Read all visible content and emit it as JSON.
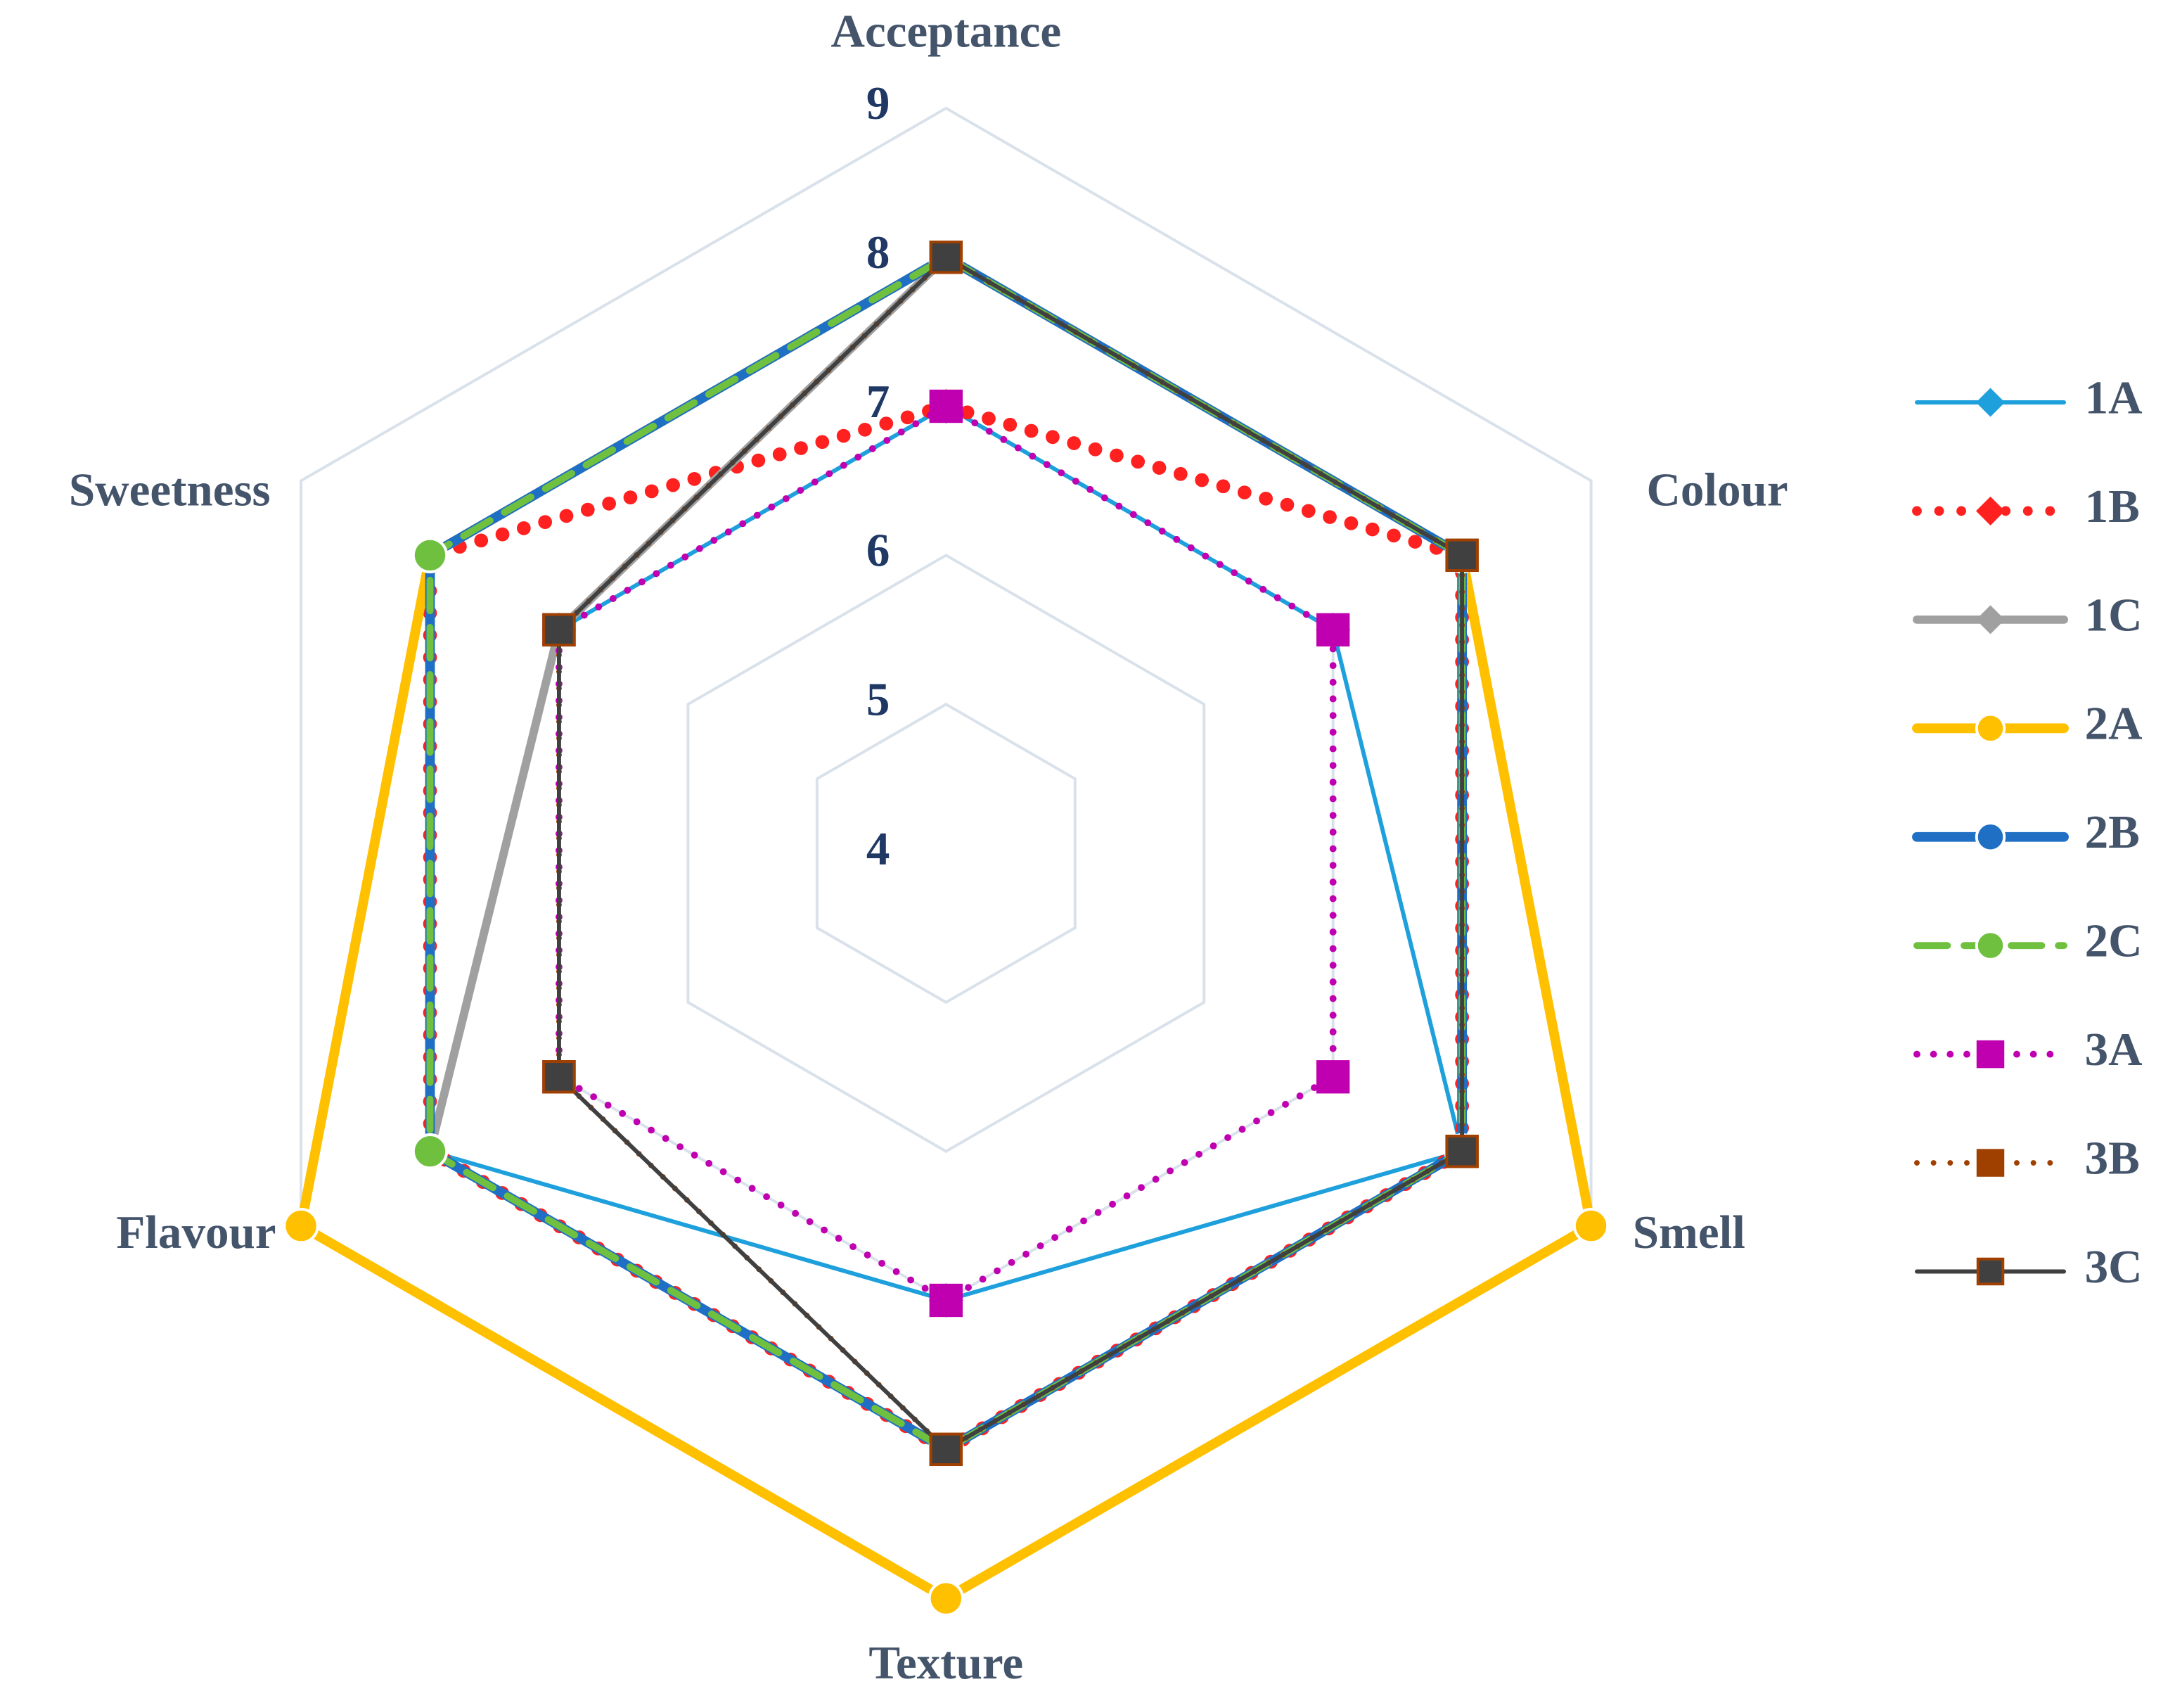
{
  "chart_data": {
    "type": "radar",
    "categories": [
      "Acceptance",
      "Colour",
      "Smell",
      "Texture",
      "Flavour",
      "Sweetness"
    ],
    "ylim": [
      4,
      9
    ],
    "yticks": [
      4,
      5,
      6,
      7,
      8,
      9
    ],
    "grid": true,
    "legend": "right",
    "series": [
      {
        "name": "1A",
        "color": "#1ea0dc",
        "marker": "diamond",
        "line": "solid",
        "values": [
          7,
          7,
          8,
          7,
          8,
          7
        ]
      },
      {
        "name": "1B",
        "color": "#ff2020",
        "marker": "diamond",
        "line": "dotted",
        "values": [
          7,
          8,
          8,
          8,
          8,
          8
        ]
      },
      {
        "name": "1C",
        "color": "#a0a0a0",
        "marker": "diamond",
        "line": "solid",
        "values": [
          8,
          8,
          8,
          8,
          8,
          7
        ]
      },
      {
        "name": "2A",
        "color": "#ffc000",
        "marker": "circle",
        "line": "solid",
        "values": [
          8,
          8,
          9,
          9,
          9,
          8
        ]
      },
      {
        "name": "2B",
        "color": "#1f6fc5",
        "marker": "circle",
        "line": "solid",
        "values": [
          8,
          8,
          8,
          8,
          8,
          8
        ]
      },
      {
        "name": "2C",
        "color": "#70c040",
        "marker": "circle",
        "line": "dashed",
        "values": [
          8,
          8,
          8,
          8,
          8,
          8
        ]
      },
      {
        "name": "3A",
        "color": "#c000b0",
        "marker": "square",
        "line": "dotted",
        "values": [
          7,
          7,
          7,
          7,
          7,
          7
        ]
      },
      {
        "name": "3B",
        "color": "#a04000",
        "marker": "square",
        "line": "dotted",
        "values": [
          8,
          8,
          8,
          8,
          7,
          7
        ]
      },
      {
        "name": "3C",
        "color": "#404040",
        "marker": "square",
        "line": "solid",
        "values": [
          8,
          8,
          8,
          8,
          7,
          7
        ]
      }
    ]
  }
}
